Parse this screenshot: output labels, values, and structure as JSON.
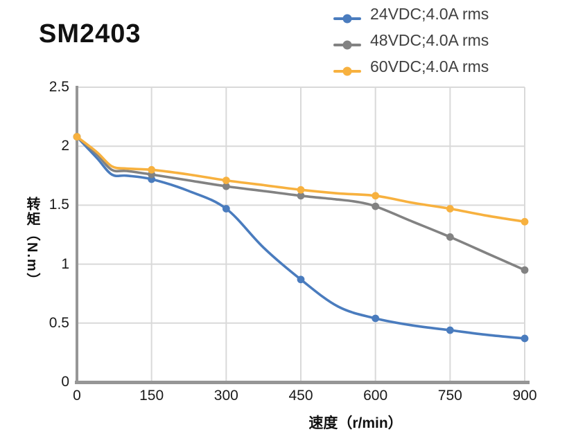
{
  "page": {
    "title": "SM2403"
  },
  "colors": {
    "series_blue": "#4A7CBE",
    "series_gray": "#828282",
    "series_yellow": "#F7B13F",
    "grid": "#D9D9D9",
    "axis": "#969696",
    "tick_text": "#1A1A1A",
    "legend_text": "#404040",
    "title_text": "#111111"
  },
  "chart_data": {
    "type": "line",
    "title": "SM2403",
    "xlabel": "速度（r/min）",
    "ylabel": "转矩（N.m）",
    "xlim": [
      0,
      900
    ],
    "ylim": [
      0,
      2.5
    ],
    "x_ticks": [
      0,
      150,
      300,
      450,
      600,
      750,
      900
    ],
    "x_tick_labels": [
      "0",
      "150",
      "300",
      "450",
      "600",
      "750",
      "900"
    ],
    "y_ticks": [
      0,
      0.5,
      1,
      1.5,
      2,
      2.5
    ],
    "y_tick_labels": [
      "0",
      "0.5",
      "1",
      "1.5",
      "2",
      "2.5"
    ],
    "grid": true,
    "legend_position": "top-right",
    "x": [
      0,
      150,
      300,
      450,
      600,
      750,
      900
    ],
    "series": [
      {
        "name": "24VDC;4.0A rms",
        "color": "#4A7CBE",
        "values": [
          2.08,
          1.72,
          1.47,
          0.87,
          0.54,
          0.44,
          0.37
        ],
        "curve_points": [
          [
            0,
            2.08
          ],
          [
            40,
            1.9
          ],
          [
            70,
            1.76
          ],
          [
            100,
            1.75
          ],
          [
            150,
            1.72
          ],
          [
            225,
            1.62
          ],
          [
            300,
            1.47
          ],
          [
            375,
            1.14
          ],
          [
            450,
            0.87
          ],
          [
            525,
            0.64
          ],
          [
            600,
            0.54
          ],
          [
            675,
            0.48
          ],
          [
            750,
            0.44
          ],
          [
            825,
            0.4
          ],
          [
            900,
            0.37
          ]
        ]
      },
      {
        "name": "48VDC;4.0A rms",
        "color": "#828282",
        "values": [
          2.08,
          1.76,
          1.66,
          1.58,
          1.49,
          1.23,
          0.95
        ],
        "curve_points": [
          [
            0,
            2.08
          ],
          [
            40,
            1.93
          ],
          [
            70,
            1.8
          ],
          [
            100,
            1.79
          ],
          [
            150,
            1.76
          ],
          [
            225,
            1.71
          ],
          [
            300,
            1.66
          ],
          [
            375,
            1.62
          ],
          [
            450,
            1.58
          ],
          [
            520,
            1.55
          ],
          [
            560,
            1.53
          ],
          [
            600,
            1.49
          ],
          [
            675,
            1.36
          ],
          [
            750,
            1.23
          ],
          [
            825,
            1.09
          ],
          [
            900,
            0.95
          ]
        ]
      },
      {
        "name": "60VDC;4.0A rms",
        "color": "#F7B13F",
        "values": [
          2.08,
          1.8,
          1.71,
          1.63,
          1.58,
          1.47,
          1.36
        ],
        "curve_points": [
          [
            0,
            2.08
          ],
          [
            40,
            1.95
          ],
          [
            70,
            1.83
          ],
          [
            100,
            1.81
          ],
          [
            150,
            1.8
          ],
          [
            225,
            1.76
          ],
          [
            300,
            1.71
          ],
          [
            375,
            1.67
          ],
          [
            450,
            1.63
          ],
          [
            525,
            1.6
          ],
          [
            600,
            1.58
          ],
          [
            675,
            1.52
          ],
          [
            750,
            1.47
          ],
          [
            825,
            1.41
          ],
          [
            900,
            1.36
          ]
        ]
      }
    ]
  }
}
